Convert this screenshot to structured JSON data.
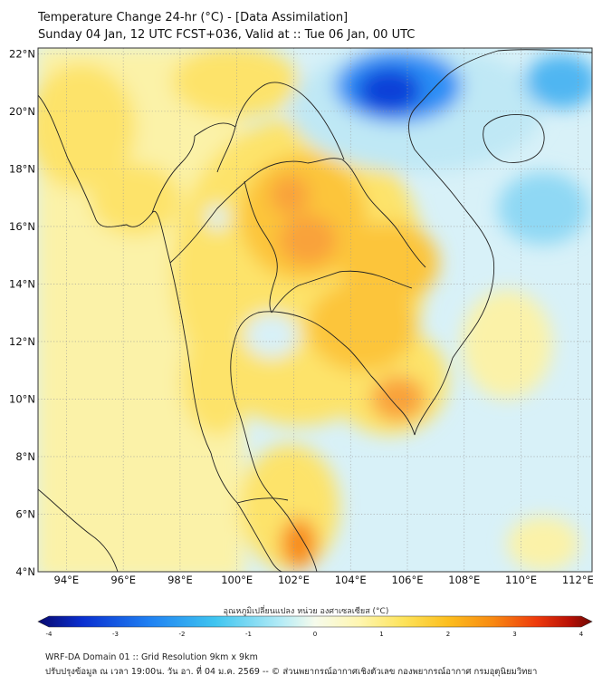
{
  "title": {
    "line1": "Temperature Change 24-hr (°C) - [Data Assimilation]",
    "line2": "Sunday 04 Jan, 12 UTC FCST+036, Valid at :: Tue 06 Jan, 00 UTC"
  },
  "map": {
    "lon_range": [
      93,
      112.5
    ],
    "lat_range": [
      4,
      22.2
    ],
    "x_ticks": [
      "94°E",
      "96°E",
      "98°E",
      "100°E",
      "102°E",
      "104°E",
      "106°E",
      "108°E",
      "110°E",
      "112°E"
    ],
    "y_ticks": [
      "22°N",
      "20°N",
      "18°N",
      "16°N",
      "14°N",
      "12°N",
      "10°N",
      "8°N",
      "6°N",
      "4°N"
    ]
  },
  "colorbar": {
    "title": "อุณหภูมิเปลี่ยนแปลง หน่วย องศาเซลเซียส (°C)",
    "min": -4,
    "max": 4,
    "ticks": [
      "-4",
      "-3",
      "-2",
      "-1",
      "0",
      "1",
      "2",
      "3",
      "4"
    ],
    "colors": [
      "#08086e",
      "#0a2fd0",
      "#1f80f2",
      "#3fc5f0",
      "#b6ecf6",
      "#f6fbec",
      "#fff6b0",
      "#fde35a",
      "#fcbe1e",
      "#f88a12",
      "#ee3a0c",
      "#b81005",
      "#6e0a04"
    ]
  },
  "footer": {
    "line1": "WRF-DA Domain 01 :: Grid Resolution 9km x 9km",
    "line2": "ปรับปรุงข้อมูล ณ เวลา 19:00น. วัน อา. ที่ 04 ม.ค. 2569 -- © ส่วนพยากรณ์อากาศเชิงตัวเลข กองพยากรณ์อากาศ กรมอุตุนิยมวิทยา"
  }
}
